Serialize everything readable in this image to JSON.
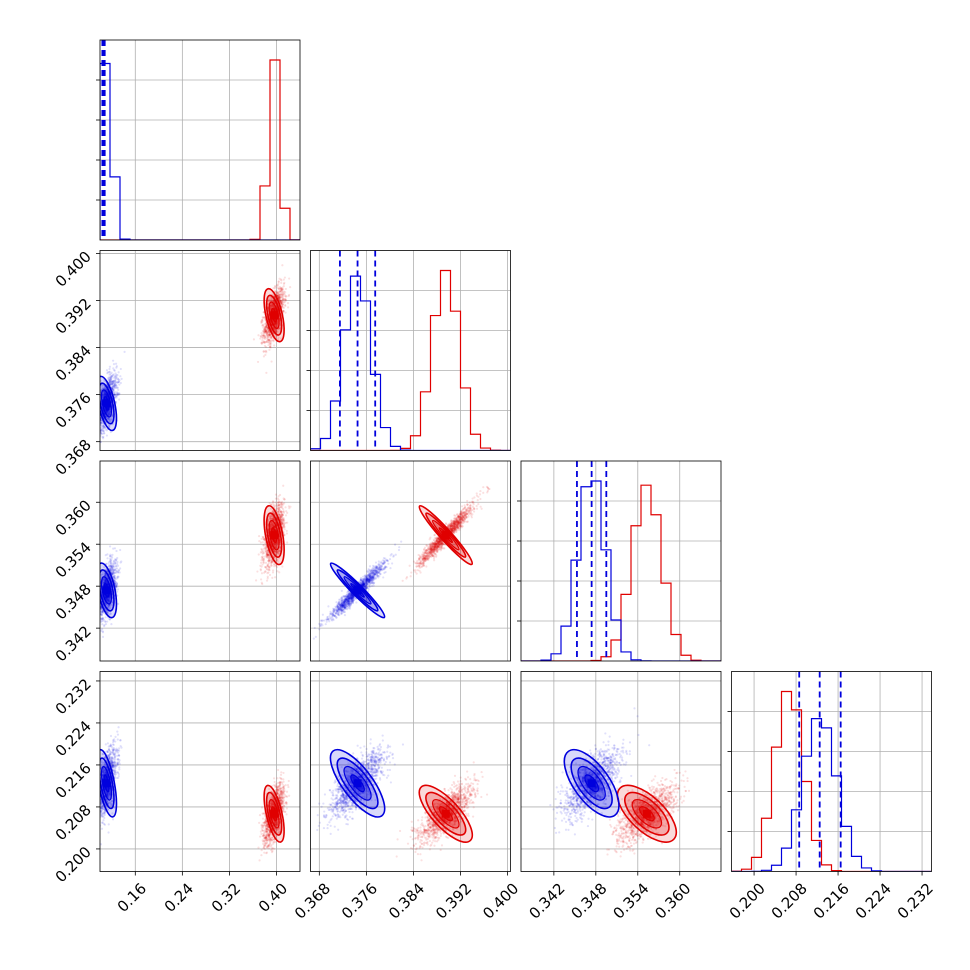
{
  "colors": {
    "red": "#e00000",
    "blue": "#0000dd",
    "grid": "#b0b0b0",
    "axis": "#000000"
  },
  "chart_data": {
    "type": "corner",
    "grid": true,
    "parameters": [
      {
        "range": [
          0.1,
          0.44
        ],
        "ticks": [
          "0.16",
          "0.24",
          "0.32",
          "0.40"
        ],
        "tick_values": [
          0.16,
          0.24,
          0.32,
          0.4
        ]
      },
      {
        "range": [
          0.3665,
          0.4005
        ],
        "ticks": [
          "0.368",
          "0.376",
          "0.384",
          "0.392",
          "0.400"
        ],
        "tick_values": [
          0.368,
          0.376,
          0.384,
          0.392,
          0.4
        ]
      },
      {
        "range": [
          0.3373,
          0.3659
        ],
        "ticks": [
          "0.342",
          "0.348",
          "0.354",
          "0.360"
        ],
        "tick_values": [
          0.342,
          0.348,
          0.354,
          0.36
        ]
      },
      {
        "range": [
          0.1957,
          0.2338
        ],
        "ticks": [
          "0.200",
          "0.208",
          "0.216",
          "0.224",
          "0.232"
        ],
        "tick_values": [
          0.2,
          0.208,
          0.216,
          0.224,
          0.232
        ]
      }
    ],
    "samples": [
      {
        "color": "red",
        "means": [
          0.396,
          0.3895,
          0.3553,
          0.2067
        ],
        "sds": [
          0.0085,
          0.00225,
          0.0021,
          0.0027
        ]
      },
      {
        "color": "blue",
        "means": [
          0.111,
          0.3745,
          0.3474,
          0.2125
        ],
        "sds": [
          0.0085,
          0.0023,
          0.00195,
          0.0032
        ]
      }
    ],
    "quantile_lines": [
      [
        0.104,
        0.106,
        0.108
      ],
      [
        0.3715,
        0.3745,
        0.3775
      ],
      [
        0.3453,
        0.3474,
        0.3495
      ],
      [
        0.2086,
        0.2125,
        0.2165
      ]
    ]
  }
}
